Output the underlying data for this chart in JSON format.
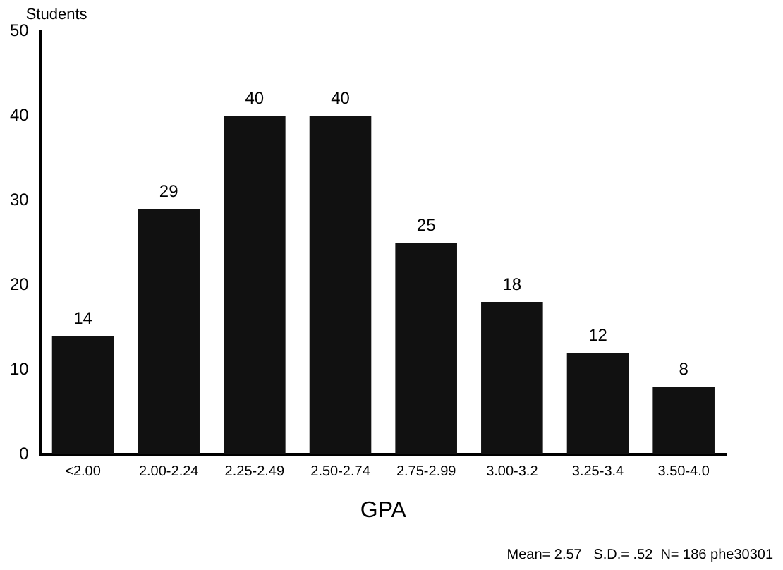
{
  "chart_data": {
    "type": "bar",
    "ylabel": "Students",
    "xlabel": "GPA",
    "categories": [
      "<2.00",
      "2.00-2.24",
      "2.25-2.49",
      "2.50-2.74",
      "2.75-2.99",
      "3.00-3.2",
      "3.25-3.4",
      "3.50-4.0"
    ],
    "values": [
      14,
      29,
      40,
      40,
      25,
      18,
      12,
      8
    ],
    "color": "#111111",
    "ylim": [
      0,
      50
    ],
    "yticks": [
      0,
      10,
      20,
      30,
      40,
      50
    ],
    "grid": false,
    "legend": false,
    "data_labels": true,
    "annotations": [
      "Mean= 2.57   S.D.= .52  N= 186 phe30301"
    ]
  }
}
